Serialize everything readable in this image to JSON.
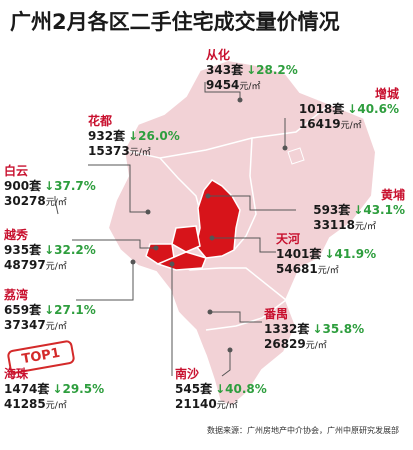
{
  "title": "广州2月各区二手住宅成交量价情况",
  "source": "数据来源：广州房地产中介协会，广州中原研究发展部",
  "stamp": "TOP1",
  "unit_set": "套",
  "unit_price": "元/㎡",
  "arrow": "↓",
  "districts": [
    {
      "id": "conghua",
      "name": "从化",
      "volume": "343",
      "change": "28.2%",
      "price": "9454"
    },
    {
      "id": "huadu",
      "name": "花都",
      "volume": "932",
      "change": "26.0%",
      "price": "15373"
    },
    {
      "id": "zengcheng",
      "name": "增城",
      "volume": "1018",
      "change": "40.6%",
      "price": "16419"
    },
    {
      "id": "baiyun",
      "name": "白云",
      "volume": "900",
      "change": "37.7%",
      "price": "30278"
    },
    {
      "id": "huangpu",
      "name": "黄埔",
      "volume": "593",
      "change": "43.1%",
      "price": "33118"
    },
    {
      "id": "yuexiu",
      "name": "越秀",
      "volume": "935",
      "change": "32.2%",
      "price": "48797"
    },
    {
      "id": "tianhe",
      "name": "天河",
      "volume": "1401",
      "change": "41.9%",
      "price": "54681"
    },
    {
      "id": "liwan",
      "name": "荔湾",
      "volume": "659",
      "change": "27.1%",
      "price": "37347"
    },
    {
      "id": "panyu",
      "name": "番禺",
      "volume": "1332",
      "change": "35.8%",
      "price": "26829"
    },
    {
      "id": "haizhu",
      "name": "海珠",
      "volume": "1474",
      "change": "29.5%",
      "price": "41285"
    },
    {
      "id": "nansha",
      "name": "南沙",
      "volume": "545",
      "change": "40.8%",
      "price": "21140"
    }
  ],
  "colors": {
    "map_fill": "#f2d2d6",
    "map_stroke": "#ffffff",
    "highlight": "#d7141a",
    "name": "#c8102e",
    "change": "#2e9e3e"
  }
}
